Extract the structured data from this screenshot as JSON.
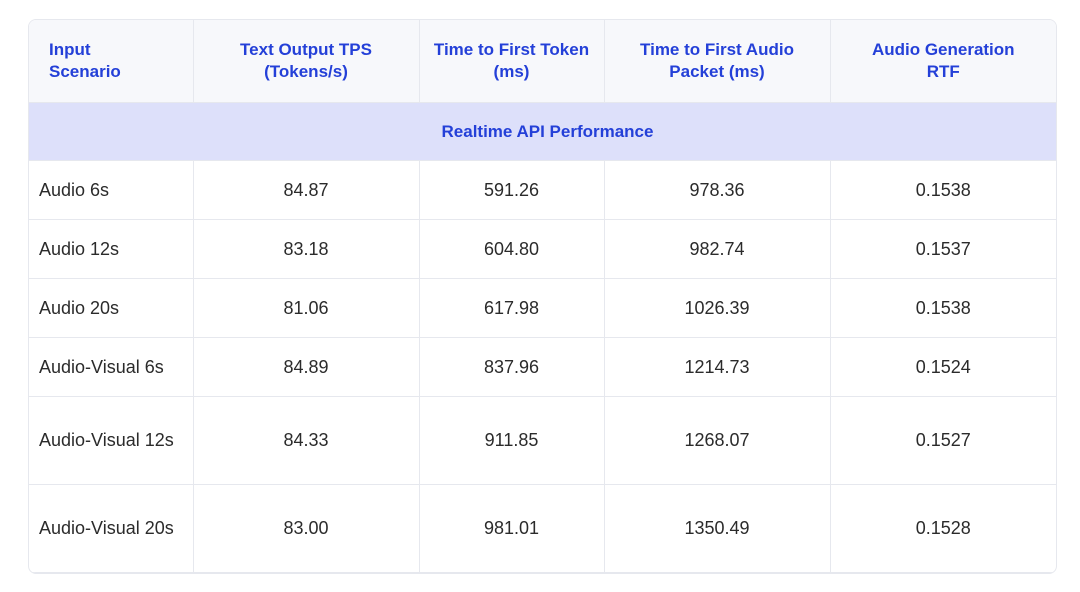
{
  "table": {
    "columns": [
      "Input Scenario",
      "Text Output TPS (Tokens/s)",
      "Time to First Token (ms)",
      "Time to First Audio Packet (ms)",
      "Audio Generation RTF"
    ],
    "section": "Realtime API Performance",
    "rows": [
      [
        "Audio 6s",
        "84.87",
        "591.26",
        "978.36",
        "0.1538"
      ],
      [
        "Audio 12s",
        "83.18",
        "604.80",
        "982.74",
        "0.1537"
      ],
      [
        "Audio 20s",
        "81.06",
        "617.98",
        "1026.39",
        "0.1538"
      ],
      [
        "Audio-Visual 6s",
        "84.89",
        "837.96",
        "1214.73",
        "0.1524"
      ],
      [
        "Audio-Visual 12s",
        "84.33",
        "911.85",
        "1268.07",
        "0.1527"
      ],
      [
        "Audio-Visual 20s",
        "83.00",
        "981.01",
        "1350.49",
        "0.1528"
      ]
    ]
  }
}
